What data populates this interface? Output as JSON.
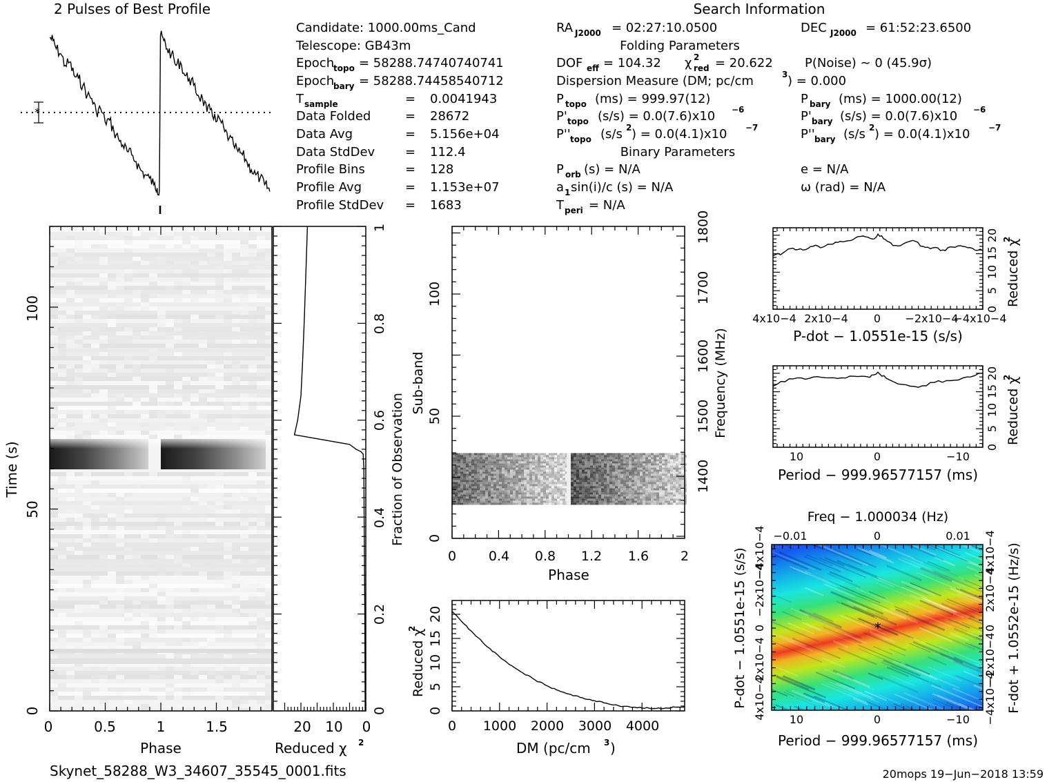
{
  "chart_data": [
    {
      "id": "profile",
      "type": "line",
      "title": "2 Pulses of Best Profile",
      "x": [
        0.0,
        0.03,
        0.06,
        0.1,
        0.14,
        0.18,
        0.22,
        0.26,
        0.3,
        0.34,
        0.38,
        0.42,
        0.46,
        0.5,
        0.54,
        0.58,
        0.62,
        0.66,
        0.7,
        0.74,
        0.78,
        0.82,
        0.86,
        0.9,
        0.94,
        0.97,
        0.99,
        1.0,
        1.03,
        1.06,
        1.1,
        1.14,
        1.18,
        1.22,
        1.26,
        1.3,
        1.34,
        1.38,
        1.42,
        1.46,
        1.5,
        1.54,
        1.58,
        1.62,
        1.66,
        1.7,
        1.74,
        1.78,
        1.82,
        1.86,
        1.9,
        1.94,
        1.97,
        1.99
      ],
      "y": [
        0.95,
        0.93,
        0.88,
        0.85,
        0.78,
        0.8,
        0.72,
        0.7,
        0.66,
        0.6,
        0.58,
        0.5,
        0.52,
        0.44,
        0.45,
        0.38,
        0.34,
        0.3,
        0.26,
        0.24,
        0.2,
        0.15,
        0.12,
        0.1,
        0.06,
        0.04,
        0.02,
        0.96,
        0.93,
        0.88,
        0.85,
        0.78,
        0.8,
        0.72,
        0.7,
        0.66,
        0.6,
        0.58,
        0.5,
        0.52,
        0.44,
        0.45,
        0.38,
        0.34,
        0.3,
        0.26,
        0.24,
        0.2,
        0.15,
        0.12,
        0.1,
        0.06,
        0.04,
        0.02
      ],
      "baseline": 0.45
    },
    {
      "id": "time-phase",
      "type": "heatmap",
      "xlabel": "Phase",
      "ylabel": "Time (s)",
      "xlim": [
        0,
        2
      ],
      "ylim": [
        0,
        120
      ],
      "xticks": [
        "0",
        "0.5",
        "1",
        "1.5"
      ],
      "yticks": [
        "0",
        "50",
        "100"
      ],
      "bright_band_time": [
        60,
        65
      ]
    },
    {
      "id": "time-chi2",
      "type": "line",
      "xlabel": "Reduced χ2",
      "ylabel": "Fraction of Observation",
      "xticks": [
        "20",
        "10",
        "0"
      ],
      "yticks": [
        "0",
        "0.2",
        "0.4",
        "0.6",
        "0.8",
        "1"
      ],
      "x": [
        0.2,
        0.3,
        0.5,
        0.6,
        0.8,
        1.5,
        3,
        5,
        22,
        21,
        20,
        19.5,
        19,
        18.5,
        18
      ],
      "y": [
        0.0,
        0.2,
        0.4,
        0.5,
        0.53,
        0.535,
        0.54,
        0.55,
        0.57,
        0.6,
        0.65,
        0.72,
        0.8,
        0.9,
        1.0
      ]
    },
    {
      "id": "subband-phase",
      "type": "heatmap",
      "xlabel": "Phase",
      "ylabel": "Sub-band",
      "y2label": "Frequency (MHz)",
      "xticks": [
        "0",
        "0.4",
        "0.8",
        "1.2",
        "1.6",
        "2"
      ],
      "yticks": [
        "0",
        "50",
        "100"
      ],
      "y2ticks": [
        "1400",
        "1500",
        "1600",
        "1700",
        "1800"
      ],
      "signal_subbands": [
        14,
        35
      ]
    },
    {
      "id": "dm-chi2",
      "type": "line",
      "xlabel": "DM (pc/cm3)",
      "ylabel": "Reduced χ2",
      "xticks": [
        "0",
        "1000",
        "2000",
        "3000",
        "4000"
      ],
      "yticks": [
        "0",
        "5",
        "10",
        "15",
        "20"
      ],
      "xlim": [
        0,
        4900
      ],
      "ylim": [
        0,
        22
      ],
      "x": [
        0,
        250,
        500,
        750,
        1000,
        1250,
        1500,
        1750,
        2000,
        2250,
        2500,
        2750,
        3000,
        3250,
        3500,
        3750,
        4000,
        4250,
        4500,
        4750,
        4900
      ],
      "y": [
        20.6,
        18.0,
        15.5,
        13.2,
        11.2,
        9.4,
        7.8,
        6.4,
        5.2,
        4.2,
        3.4,
        2.7,
        2.1,
        1.6,
        1.1,
        0.8,
        0.6,
        0.5,
        0.6,
        0.8,
        0.9
      ]
    },
    {
      "id": "pdot-chi2",
      "type": "line",
      "xlabel": "P-dot − 1.0551e-15 (s/s)",
      "ylabel": "Reduced χ2",
      "xticks": [
        "4x10−4",
        "2x10−4",
        "0",
        "−2x10−4",
        "−4x10−4"
      ],
      "yticks": [
        "0",
        "5",
        "10",
        "15",
        "20"
      ],
      "ylim": [
        0,
        22
      ],
      "x": [
        4.2,
        3.8,
        3.4,
        3.0,
        2.6,
        2.2,
        1.8,
        1.4,
        1.0,
        0.6,
        0.2,
        0.0,
        -0.3,
        -0.6,
        -1.0,
        -1.4,
        -1.8,
        -2.2,
        -2.6,
        -3.0,
        -3.4,
        -3.8,
        -4.2
      ],
      "y": [
        14.5,
        15.2,
        16.5,
        16.0,
        17.0,
        16.8,
        17.6,
        18.2,
        18.8,
        19.8,
        19.0,
        20.3,
        18.8,
        17.2,
        17.6,
        18.6,
        17.0,
        16.6,
        16.0,
        16.8,
        17.0,
        16.4,
        15.8
      ]
    },
    {
      "id": "period-chi2",
      "type": "line",
      "xlabel": "Period − 999.96577157 (ms)",
      "ylabel": "Reduced χ2",
      "xticks": [
        "10",
        "0",
        "−10"
      ],
      "yticks": [
        "0",
        "5",
        "10",
        "15",
        "20"
      ],
      "ylim": [
        0,
        22
      ],
      "x": [
        13,
        11,
        9,
        7,
        5,
        3,
        1,
        0,
        -1,
        -3,
        -5,
        -7,
        -9,
        -11,
        -13
      ],
      "y": [
        16.5,
        18.5,
        18.4,
        18.9,
        18.6,
        19.2,
        18.9,
        20.3,
        18.7,
        17.0,
        16.2,
        17.5,
        18.0,
        19.0,
        20.0
      ]
    },
    {
      "id": "pdot-period-map",
      "type": "heatmap",
      "title": "Freq − 1.000034 (Hz)",
      "xlabel": "Period − 999.96577157 (ms)",
      "ylabel": "P-dot − 1.0551e-15 (s/s)",
      "y2label": "F-dot + 1.0552e-15 (Hz/s)",
      "xticks": [
        "10",
        "0",
        "−10"
      ],
      "x2ticks": [
        "−0.01",
        "0",
        "0.01"
      ],
      "yticks": [
        "4x10−4",
        "2x10−4",
        "0",
        "−2x10−4",
        "−4x10−4"
      ],
      "y2ticks": [
        "−4x10−4",
        "−2x10−4",
        "0",
        "2x10−4",
        "4x10−4"
      ]
    }
  ],
  "info": {
    "search_title": "Search Information",
    "folding_title": "Folding Parameters",
    "binary_title": "Binary Parameters",
    "candidate": "Candidate:  1000.00ms_Cand",
    "telescope": "Telescope:  GB43m",
    "epoch_topo": "= 58288.74740740741",
    "epoch_bary": "= 58288.74458540712",
    "t_sample_val": "0.0041943",
    "data_folded_lbl": "Data Folded",
    "data_folded_val": "28672",
    "data_avg_lbl": "Data Avg",
    "data_avg_val": "5.156e+04",
    "data_stddev_lbl": "Data StdDev",
    "data_stddev_val": "112.4",
    "profile_bins_lbl": "Profile Bins",
    "profile_bins_val": "128",
    "profile_avg_lbl": "Profile Avg",
    "profile_avg_val": "1.153e+07",
    "profile_stddev_lbl": "Profile StdDev",
    "profile_stddev_val": "1683",
    "ra": "= 02:27:10.0500",
    "dec": "= 61:52:23.6500",
    "dof": "= 104.32",
    "chi2": "= 20.622",
    "pnoise": "P(Noise) ∼ 0    (45.9σ)",
    "dm": "Dispersion Measure (DM; pc/cm",
    "dm_val": ") = 0.000",
    "ptopo": "(ms) =  999.97(12)",
    "pbary": "(ms) =  1000.00(12)",
    "pdtopo": "(s/s) = 0.0(7.6)x10",
    "pdbary": "(s/s) = 0.0(7.6)x10",
    "pddtopo": ") = 0.0(4.1)x10",
    "pddbary": ") = 0.0(4.1)x10",
    "porb": "(s) = N/A",
    "a1sini": "sin(i)/c (s) = N/A",
    "tperi": "= N/A",
    "e": "e = N/A",
    "omega": "ω (rad) = N/A"
  },
  "footer": {
    "filename": "Skynet_58288_W3_34607_35545_0001.fits",
    "stamp": "20mops 19−Jun−2018 13:59"
  }
}
